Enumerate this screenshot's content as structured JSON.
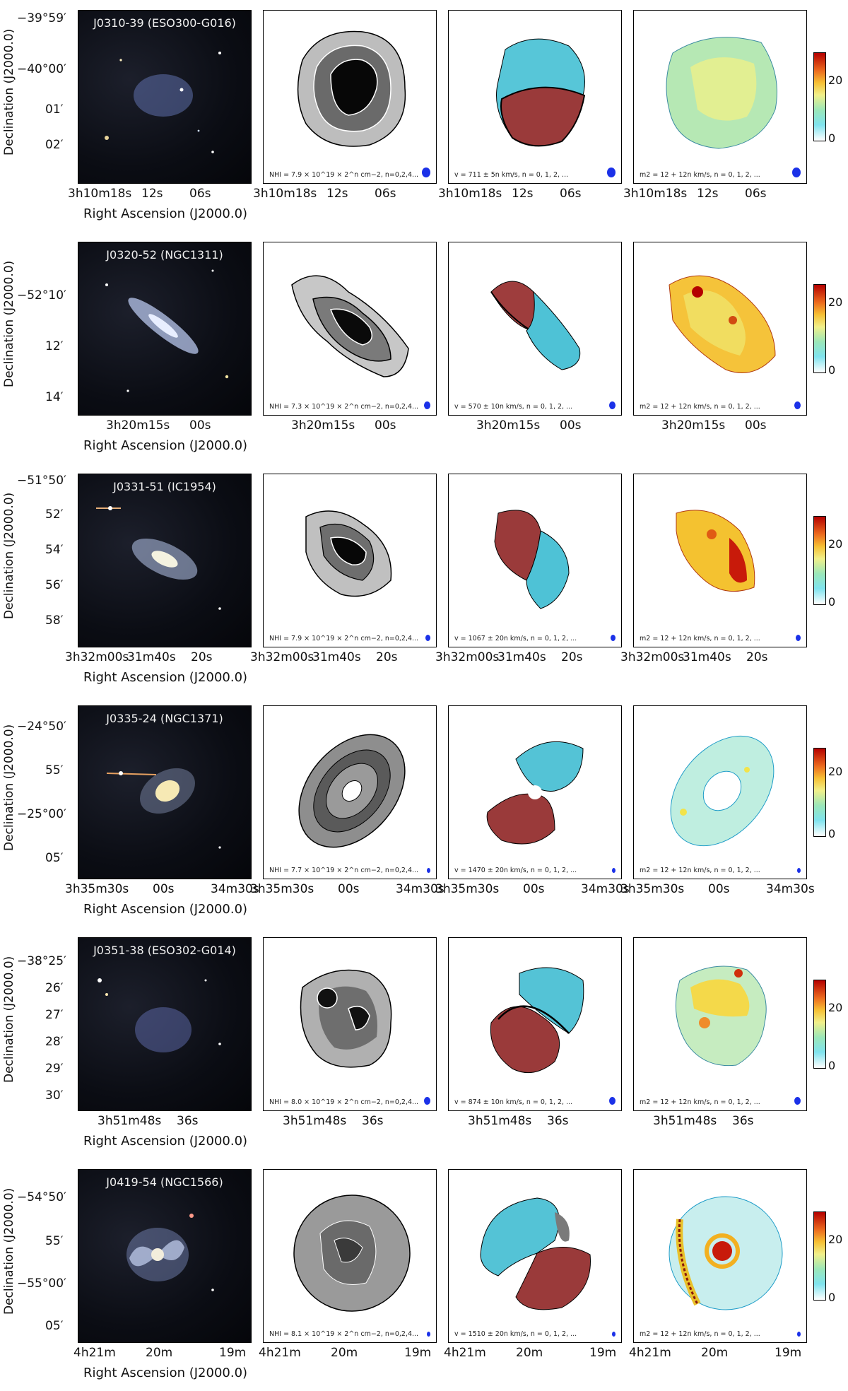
{
  "axes": {
    "ylabel": "Declination (J2000.0)",
    "xlabel": "Right Ascension (J2000.0)"
  },
  "rows": [
    {
      "name": "J0310-39 (ESO300-G016)",
      "dec_ticks": [
        "−39°59′",
        "−40°00′",
        "01′",
        "02′"
      ],
      "ra_ticks": [
        "3h10m18s",
        "12s",
        "06s"
      ],
      "note_nhi": "NHI = 7.9 × 10^19 × 2^n cm−2, n=0,2,4...",
      "note_vel": "v = 711 ± 5n km/s, n = 0, 1, 2, ...",
      "note_m2": "m2 = 12 + 12n km/s, n = 0, 1, 2, ...",
      "cbar_ticks": [
        "20",
        "0"
      ]
    },
    {
      "name": "J0320-52 (NGC1311)",
      "dec_ticks": [
        "−52°10′",
        "12′",
        "14′"
      ],
      "ra_ticks": [
        "3h20m15s",
        "00s"
      ],
      "note_nhi": "NHI = 7.3 × 10^19 × 2^n cm−2, n=0,2,4...",
      "note_vel": "v = 570 ± 10n km/s, n = 0, 1, 2, ...",
      "note_m2": "m2 = 12 + 12n km/s, n = 0, 1, 2, ...",
      "cbar_ticks": [
        "20",
        "0"
      ]
    },
    {
      "name": "J0331-51 (IC1954)",
      "dec_ticks": [
        "−51°50′",
        "52′",
        "54′",
        "56′",
        "58′"
      ],
      "ra_ticks": [
        "3h32m00s",
        "31m40s",
        "20s"
      ],
      "note_nhi": "NHI = 7.9 × 10^19 × 2^n cm−2, n=0,2,4...",
      "note_vel": "v = 1067 ± 20n km/s, n = 0, 1, 2, ...",
      "note_m2": "m2 = 12 + 12n km/s, n = 0, 1, 2, ...",
      "cbar_ticks": [
        "20",
        "0"
      ]
    },
    {
      "name": "J0335-24 (NGC1371)",
      "dec_ticks": [
        "−24°50′",
        "55′",
        "−25°00′",
        "05′"
      ],
      "ra_ticks": [
        "3h35m30s",
        "00s",
        "34m30s"
      ],
      "note_nhi": "NHI = 7.7 × 10^19 × 2^n cm−2, n=0,2,4...",
      "note_vel": "v = 1470 ± 20n km/s, n = 0, 1, 2, ...",
      "note_m2": "m2 = 12 + 12n km/s, n = 0, 1, 2, ...",
      "cbar_ticks": [
        "20",
        "0"
      ]
    },
    {
      "name": "J0351-38 (ESO302-G014)",
      "dec_ticks": [
        "−38°25′",
        "26′",
        "27′",
        "28′",
        "29′",
        "30′"
      ],
      "ra_ticks": [
        "3h51m48s",
        "36s"
      ],
      "note_nhi": "NHI = 8.0 × 10^19 × 2^n cm−2, n=0,2,4...",
      "note_vel": "v = 874 ± 10n km/s, n = 0, 1, 2, ...",
      "note_m2": "m2 = 12 + 12n km/s, n = 0, 1, 2, ...",
      "cbar_ticks": [
        "20",
        "0"
      ]
    },
    {
      "name": "J0419-54 (NGC1566)",
      "dec_ticks": [
        "−54°50′",
        "55′",
        "−55°00′",
        "05′"
      ],
      "ra_ticks": [
        "4h21m",
        "20m",
        "19m"
      ],
      "note_nhi": "NHI = 8.1 × 10^19 × 2^n cm−2, n=0,2,4...",
      "note_vel": "v = 1510 ± 20n km/s, n = 0, 1, 2, ...",
      "note_m2": "m2 = 12 + 12n km/s, n = 0, 1, 2, ...",
      "cbar_ticks": [
        "20",
        "0"
      ]
    }
  ]
}
